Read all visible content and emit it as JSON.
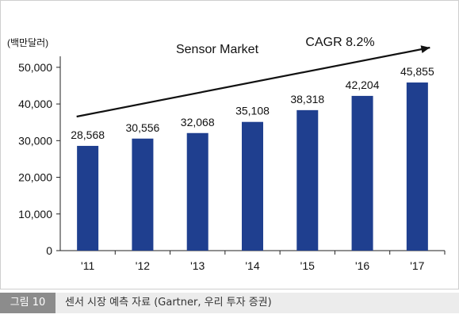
{
  "chart_data": {
    "type": "bar",
    "title": "Sensor Market",
    "annotation": "CAGR 8.2%",
    "ylabel": "(백만달러)",
    "xlabel": "",
    "categories": [
      "'11",
      "'12",
      "'13",
      "'14",
      "'15",
      "'16",
      "'17"
    ],
    "values": [
      28568,
      30556,
      32068,
      35108,
      38318,
      42204,
      45855
    ],
    "value_labels": [
      "28,568",
      "30,556",
      "32,068",
      "35,108",
      "38,318",
      "42,204",
      "45,855"
    ],
    "yticks": [
      "0",
      "10,000",
      "20,000",
      "30,000",
      "40,000",
      "50,000"
    ],
    "ytick_values": [
      0,
      10000,
      20000,
      30000,
      40000,
      50000
    ],
    "ylim": [
      0,
      53000
    ],
    "grid": false,
    "bar_color": "#1f3f8f"
  },
  "caption": {
    "label": "그림 10",
    "text": "센서 시장 예측 자료 (Gartner, 우리 투자 증권)"
  }
}
